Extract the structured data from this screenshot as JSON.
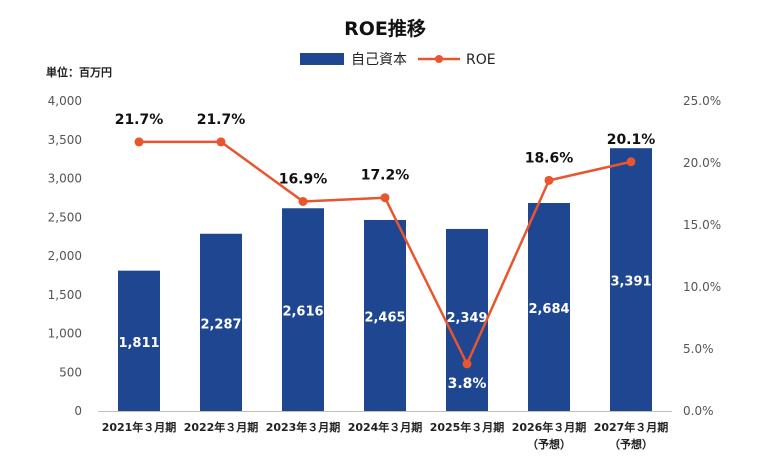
{
  "chart_data": {
    "type": "bar",
    "title": "ROE推移",
    "unit_label": "単位：百万円",
    "categories": [
      [
        "2021年３月期"
      ],
      [
        "2022年３月期"
      ],
      [
        "2023年３月期"
      ],
      [
        "2024年３月期"
      ],
      [
        "2025年３月期"
      ],
      [
        "2026年３月期",
        "（予想）"
      ],
      [
        "2027年３月期",
        "（予想）"
      ]
    ],
    "series": [
      {
        "name": "自己資本",
        "type": "bar",
        "axis": "left",
        "color": "#1f4690",
        "values": [
          1811,
          2287,
          2616,
          2465,
          2349,
          2684,
          3391
        ],
        "labels": [
          "1,811",
          "2,287",
          "2,616",
          "2,465",
          "2,349",
          "2,684",
          "3,391"
        ]
      },
      {
        "name": "ROE",
        "type": "line",
        "axis": "right",
        "color": "#e8552f",
        "values": [
          21.7,
          21.7,
          16.9,
          17.2,
          3.8,
          18.6,
          20.1
        ],
        "labels": [
          "21.7%",
          "21.7%",
          "16.9%",
          "17.2%",
          "3.8%",
          "18.6%",
          "20.1%"
        ]
      }
    ],
    "y_left": {
      "ylim": [
        0,
        4000
      ],
      "ticks": [
        0,
        500,
        1000,
        1500,
        2000,
        2500,
        3000,
        3500,
        4000
      ],
      "tick_labels": [
        "0",
        "500",
        "1,000",
        "1,500",
        "2,000",
        "2,500",
        "3,000",
        "3,500",
        "4,000"
      ]
    },
    "y_right": {
      "ylim": [
        0,
        25
      ],
      "ticks": [
        0,
        5,
        10,
        15,
        20,
        25
      ],
      "tick_labels": [
        "0.0%",
        "5.0%",
        "10.0%",
        "15.0%",
        "20.0%",
        "25.0%"
      ]
    },
    "legend_position": "top-center",
    "grid": false
  }
}
